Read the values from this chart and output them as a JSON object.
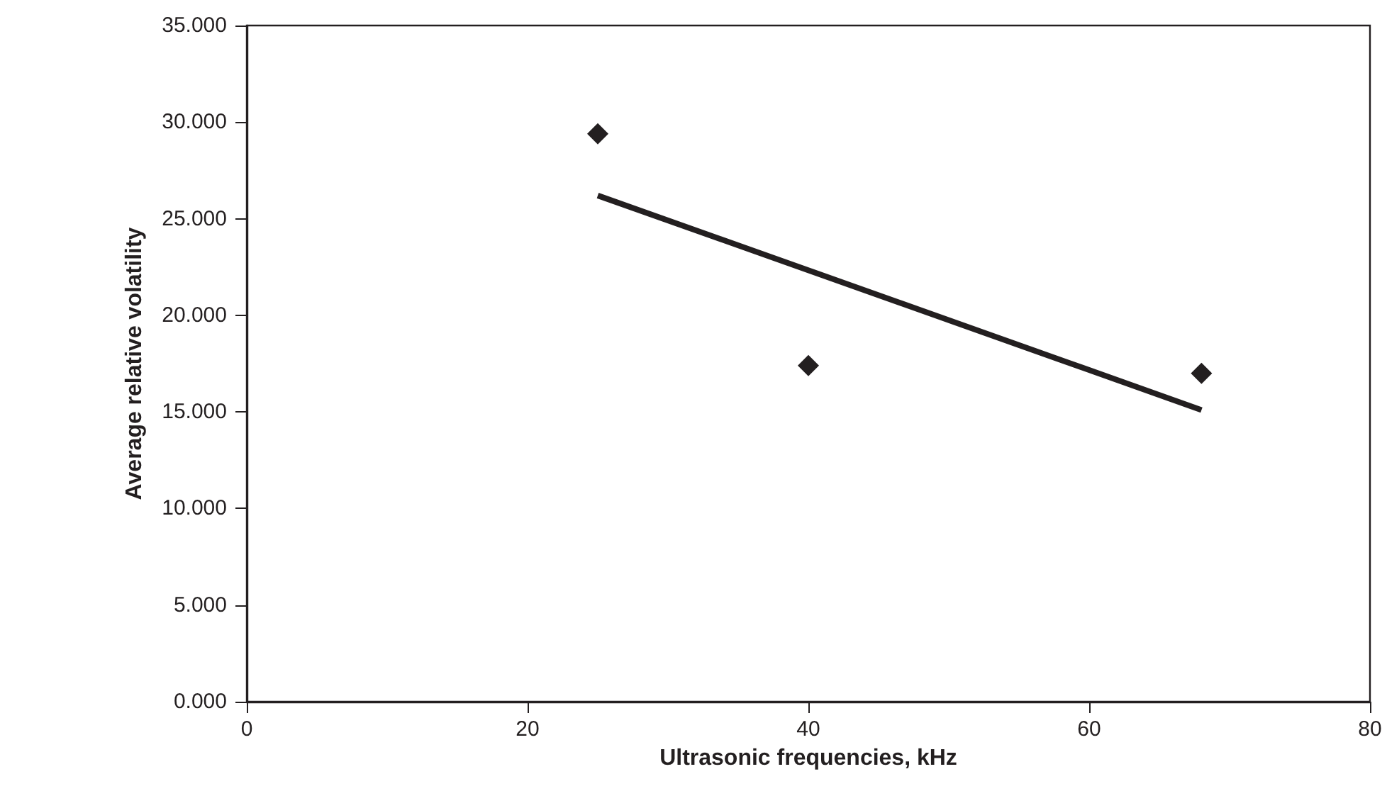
{
  "chart_data": {
    "type": "scatter",
    "xlabel": "Ultrasonic frequencies, kHz",
    "ylabel": "Average relative volatility",
    "xlim": [
      0,
      80
    ],
    "xticks": [
      0,
      20,
      40,
      60,
      80
    ],
    "ylim": [
      0,
      35
    ],
    "yticks": [
      {
        "value": 0,
        "label": "0.000"
      },
      {
        "value": 5,
        "label": "5.000"
      },
      {
        "value": 10,
        "label": "10.000"
      },
      {
        "value": 15,
        "label": "15.000"
      },
      {
        "value": 20,
        "label": "20.000"
      },
      {
        "value": 25,
        "label": "25.000"
      },
      {
        "value": 30,
        "label": "30.000"
      },
      {
        "value": 35,
        "label": "35.000"
      }
    ],
    "grid": false,
    "marker": "diamond",
    "series": [
      {
        "color": "#231f20",
        "x": [
          25,
          40,
          68
        ],
        "values": [
          29.4,
          17.4,
          17.0
        ]
      },
      {
        "type": "line",
        "color": "#231f20",
        "x": [
          25,
          68
        ],
        "values": [
          26.2,
          15.1
        ],
        "marker": "none",
        "line_style": "solid"
      }
    ]
  }
}
